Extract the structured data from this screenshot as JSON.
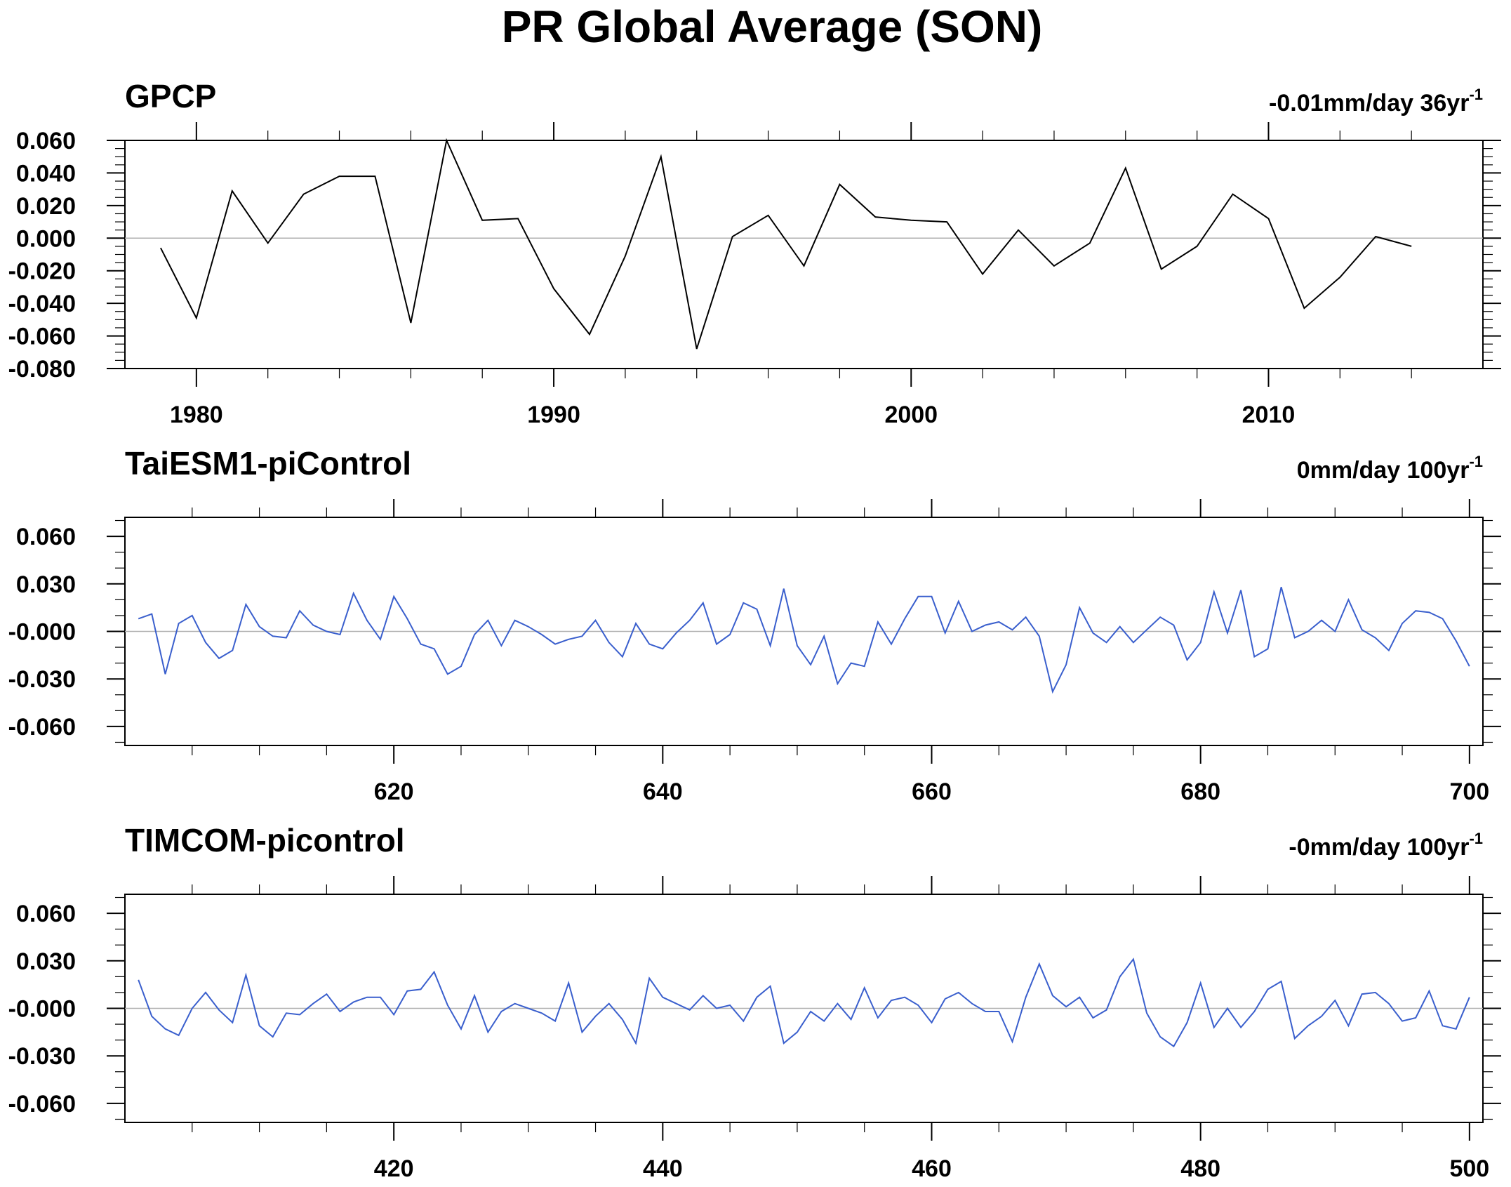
{
  "title": "PR Global Average (SON)",
  "chart_data": [
    {
      "type": "line",
      "panel_title": "GPCP",
      "trend_label": {
        "text": "-0.01mm/day 36yr",
        "sup": "-1"
      },
      "line_color": "#000000",
      "ylim": [
        -0.08,
        0.06
      ],
      "yticks": [
        -0.08,
        -0.06,
        -0.04,
        -0.02,
        0.0,
        0.02,
        0.04,
        0.06
      ],
      "ytick_labels": [
        "-0.080",
        "-0.060",
        "-0.040",
        "-0.020",
        "0.000",
        "0.020",
        "0.040",
        "0.060"
      ],
      "yminor_step": 0.005,
      "xlim": [
        1978,
        2016
      ],
      "xticks": [
        1980,
        1990,
        2000,
        2010
      ],
      "xtick_labels": [
        "1980",
        "1990",
        "2000",
        "2010"
      ],
      "xminor_step": 2,
      "x": [
        1979,
        1980,
        1981,
        1982,
        1983,
        1984,
        1985,
        1986,
        1987,
        1988,
        1989,
        1990,
        1991,
        1992,
        1993,
        1994,
        1995,
        1996,
        1997,
        1998,
        1999,
        2000,
        2001,
        2002,
        2003,
        2004,
        2005,
        2006,
        2007,
        2008,
        2009,
        2010,
        2011,
        2012,
        2013,
        2014
      ],
      "values": [
        -0.006,
        -0.049,
        0.029,
        -0.003,
        0.027,
        0.038,
        0.038,
        -0.052,
        0.06,
        0.011,
        0.012,
        -0.031,
        -0.059,
        -0.011,
        0.05,
        -0.068,
        0.001,
        0.014,
        -0.017,
        0.033,
        0.013,
        0.011,
        0.01,
        -0.022,
        0.005,
        -0.017,
        -0.003,
        0.043,
        -0.019,
        -0.005,
        0.027,
        0.012,
        -0.043,
        -0.024,
        0.001,
        -0.005
      ],
      "grid": false,
      "zero_line": true
    },
    {
      "type": "line",
      "panel_title": "TaiESM1-piControl",
      "trend_label": {
        "text": "0mm/day 100yr",
        "sup": "-1"
      },
      "line_color": "#3a5fcd",
      "ylim": [
        -0.072,
        0.072
      ],
      "yticks": [
        -0.06,
        -0.03,
        0.0,
        0.03,
        0.06
      ],
      "ytick_labels": [
        "-0.060",
        "-0.030",
        "-0.000",
        "0.030",
        "0.060"
      ],
      "yminor_step": 0.01,
      "xlim": [
        600,
        701
      ],
      "xticks": [
        620,
        640,
        660,
        680,
        700
      ],
      "xtick_labels": [
        "620",
        "640",
        "660",
        "680",
        "700"
      ],
      "xminor_step": 5,
      "x_start": 601,
      "values": [
        0.008,
        0.011,
        -0.027,
        0.005,
        0.01,
        -0.007,
        -0.017,
        -0.012,
        0.017,
        0.003,
        -0.003,
        -0.004,
        0.013,
        0.004,
        0.0,
        -0.002,
        0.024,
        0.007,
        -0.005,
        0.022,
        0.008,
        -0.008,
        -0.011,
        -0.027,
        -0.022,
        -0.002,
        0.007,
        -0.009,
        0.007,
        0.003,
        -0.002,
        -0.008,
        -0.005,
        -0.003,
        0.007,
        -0.007,
        -0.016,
        0.005,
        -0.008,
        -0.011,
        -0.001,
        0.007,
        0.018,
        -0.008,
        -0.002,
        0.018,
        0.014,
        -0.009,
        0.027,
        -0.009,
        -0.021,
        -0.003,
        -0.033,
        -0.02,
        -0.022,
        0.006,
        -0.008,
        0.008,
        0.022,
        0.022,
        -0.001,
        0.019,
        0.0,
        0.004,
        0.006,
        0.001,
        0.009,
        -0.003,
        -0.038,
        -0.021,
        0.015,
        -0.001,
        -0.007,
        0.003,
        -0.007,
        0.001,
        0.009,
        0.004,
        -0.018,
        -0.007,
        0.025,
        -0.001,
        0.026,
        -0.016,
        -0.011,
        0.028,
        -0.004,
        0.0,
        0.007,
        0.0,
        0.02,
        0.001,
        -0.004,
        -0.012,
        0.005,
        0.013,
        0.012,
        0.008,
        -0.006,
        -0.022
      ],
      "grid": false,
      "zero_line": true
    },
    {
      "type": "line",
      "panel_title": "TIMCOM-picontrol",
      "trend_label": {
        "text": "-0mm/day 100yr",
        "sup": "-1"
      },
      "line_color": "#3a5fcd",
      "ylim": [
        -0.072,
        0.072
      ],
      "yticks": [
        -0.06,
        -0.03,
        0.0,
        0.03,
        0.06
      ],
      "ytick_labels": [
        "-0.060",
        "-0.030",
        "-0.000",
        "0.030",
        "0.060"
      ],
      "yminor_step": 0.01,
      "xlim": [
        400,
        501
      ],
      "xticks": [
        420,
        440,
        460,
        480,
        500
      ],
      "xtick_labels": [
        "420",
        "440",
        "460",
        "480",
        "500"
      ],
      "xminor_step": 5,
      "x_start": 401,
      "values": [
        0.018,
        -0.005,
        -0.013,
        -0.017,
        0.0,
        0.01,
        -0.001,
        -0.009,
        0.021,
        -0.011,
        -0.018,
        -0.003,
        -0.004,
        0.003,
        0.009,
        -0.002,
        0.004,
        0.007,
        0.007,
        -0.004,
        0.011,
        0.012,
        0.023,
        0.002,
        -0.013,
        0.008,
        -0.015,
        -0.002,
        0.003,
        0.0,
        -0.003,
        -0.008,
        0.016,
        -0.015,
        -0.005,
        0.003,
        -0.007,
        -0.022,
        0.019,
        0.007,
        0.003,
        -0.001,
        0.008,
        0.0,
        0.002,
        -0.008,
        0.007,
        0.014,
        -0.022,
        -0.015,
        -0.002,
        -0.008,
        0.003,
        -0.007,
        0.013,
        -0.006,
        0.005,
        0.007,
        0.002,
        -0.009,
        0.006,
        0.01,
        0.003,
        -0.002,
        -0.002,
        -0.021,
        0.007,
        0.028,
        0.008,
        0.001,
        0.007,
        -0.006,
        -0.001,
        0.02,
        0.031,
        -0.003,
        -0.018,
        -0.024,
        -0.009,
        0.016,
        -0.012,
        0.0,
        -0.012,
        -0.002,
        0.012,
        0.017,
        -0.019,
        -0.011,
        -0.005,
        0.005,
        -0.011,
        0.009,
        0.01,
        0.003,
        -0.008,
        -0.006,
        0.011,
        -0.011,
        -0.013,
        0.007
      ],
      "grid": false,
      "zero_line": true
    }
  ]
}
